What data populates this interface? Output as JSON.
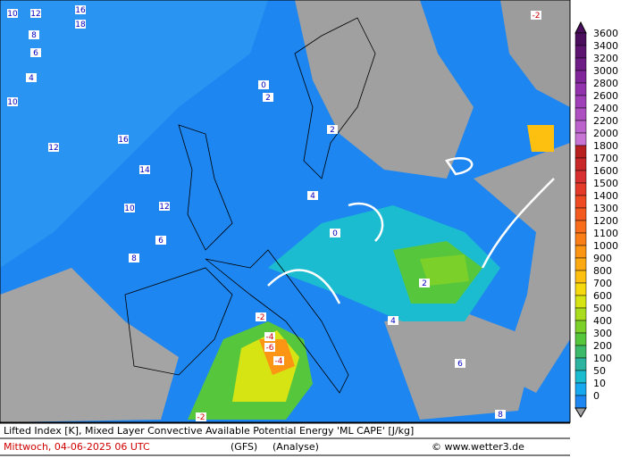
{
  "legend": {
    "levels": [
      {
        "value": 3600,
        "color": "#4a0e5c"
      },
      {
        "value": 3400,
        "color": "#5c1470"
      },
      {
        "value": 3200,
        "color": "#6e1c86"
      },
      {
        "value": 3000,
        "color": "#80269a"
      },
      {
        "value": 2800,
        "color": "#9232ac"
      },
      {
        "value": 2600,
        "color": "#a040b8"
      },
      {
        "value": 2400,
        "color": "#ae50c2"
      },
      {
        "value": 2200,
        "color": "#bc62cc"
      },
      {
        "value": 2000,
        "color": "#c874d4"
      },
      {
        "value": 1800,
        "color": "#b82020"
      },
      {
        "value": 1700,
        "color": "#c82828"
      },
      {
        "value": 1600,
        "color": "#d83030"
      },
      {
        "value": 1500,
        "color": "#e43a2a"
      },
      {
        "value": 1400,
        "color": "#ee4a24"
      },
      {
        "value": 1300,
        "color": "#f45a20"
      },
      {
        "value": 1200,
        "color": "#f86c1c"
      },
      {
        "value": 1100,
        "color": "#fa7e18"
      },
      {
        "value": 1000,
        "color": "#fc9414"
      },
      {
        "value": 900,
        "color": "#fdaa12"
      },
      {
        "value": 800,
        "color": "#fec010"
      },
      {
        "value": 700,
        "color": "#f6d80e"
      },
      {
        "value": 600,
        "color": "#d6e414"
      },
      {
        "value": 500,
        "color": "#a8dc1c"
      },
      {
        "value": 400,
        "color": "#7cd02a"
      },
      {
        "value": 300,
        "color": "#56c63c"
      },
      {
        "value": 200,
        "color": "#3cba6a"
      },
      {
        "value": 100,
        "color": "#2cb4a0"
      },
      {
        "value": 50,
        "color": "#1cbcd0"
      },
      {
        "value": 10,
        "color": "#18a8f0"
      },
      {
        "value": 0,
        "color": "#1e86f0"
      }
    ]
  },
  "caption": {
    "title": "Lifted Index [K], Mixed Layer Convective Available Potential Energy 'ML CAPE' [J/kg]",
    "date": "Mittwoch, 04-06-2025  06 UTC",
    "model": "(GFS)",
    "run": "(Analyse)",
    "source": "© www.wetter3.de"
  },
  "map_labels": [
    "10",
    "12",
    "16",
    "18",
    "8",
    "6",
    "4",
    "2",
    "0",
    "-2",
    "12",
    "16",
    "14",
    "10",
    "12",
    "8",
    "6",
    "4",
    "2",
    "0",
    "-2",
    "-4",
    "-6",
    "-4",
    "-2",
    "2",
    "4",
    "6",
    "8",
    "10"
  ]
}
